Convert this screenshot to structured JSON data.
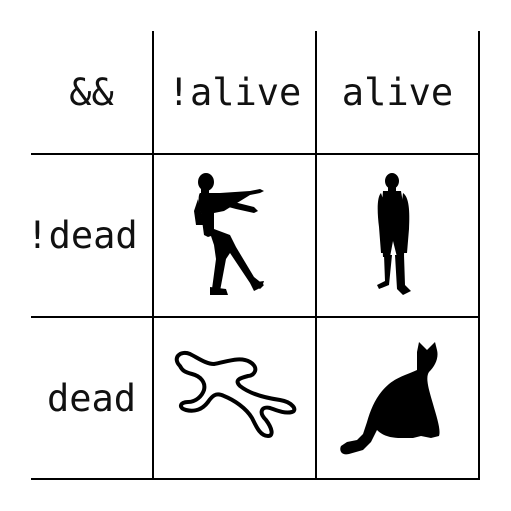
{
  "table": {
    "corner_label": "&&",
    "column_headers": [
      "!alive",
      "alive"
    ],
    "row_headers": [
      "!dead",
      "dead"
    ],
    "cells": [
      [
        "zombie-icon",
        "person-icon"
      ],
      [
        "body-outline-icon",
        "cat-icon"
      ]
    ],
    "line_color": "#000000"
  }
}
